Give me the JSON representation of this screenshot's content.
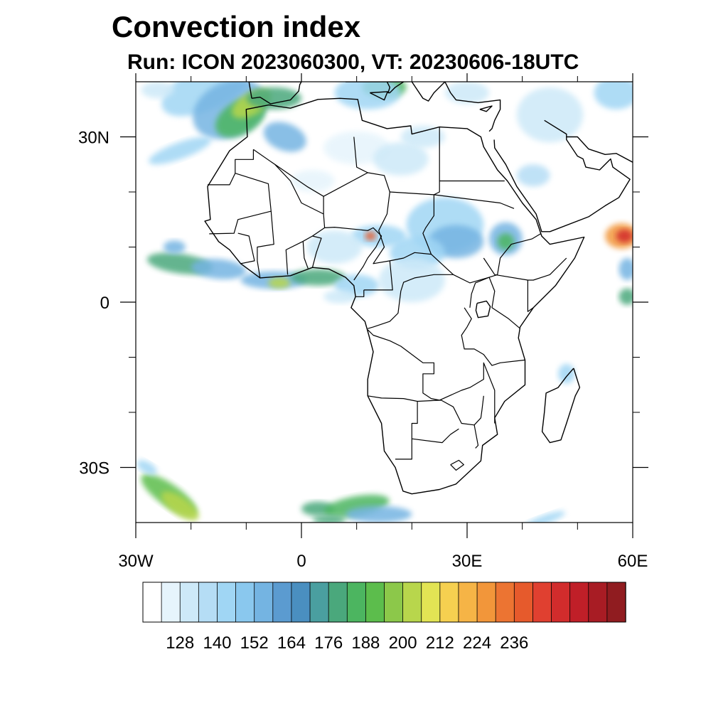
{
  "title": "Convection index",
  "subtitle": "Run: ICON 2023060300,  VT: 20230606-18UTC",
  "map": {
    "projection": "equirectangular",
    "lon_range": [
      -30,
      60
    ],
    "lat_range": [
      -40,
      40
    ],
    "lon_ticks": [
      {
        "value": -30,
        "label": "30W"
      },
      {
        "value": 0,
        "label": "0"
      },
      {
        "value": 30,
        "label": "30E"
      },
      {
        "value": 60,
        "label": "60E"
      }
    ],
    "lat_ticks": [
      {
        "value": 30,
        "label": "30N"
      },
      {
        "value": 0,
        "label": "0"
      },
      {
        "value": -30,
        "label": "30S"
      }
    ],
    "region": "Africa and surrounding oceans"
  },
  "colorbar": {
    "colors": [
      "#ffffff",
      "#e6f4fc",
      "#cde9f8",
      "#b5ddf5",
      "#a0d6f4",
      "#8ac8ee",
      "#74b4e2",
      "#5b9bd0",
      "#4a8fc0",
      "#4a9fa0",
      "#4aa87c",
      "#4cb560",
      "#5cbd4c",
      "#8cc84a",
      "#b8d64c",
      "#e2e454",
      "#f6d050",
      "#f6b446",
      "#f2963a",
      "#ec7432",
      "#e65a2c",
      "#e04030",
      "#d22c2c",
      "#c01f28",
      "#a81c24",
      "#901c20"
    ],
    "labels": [
      "128",
      "140",
      "152",
      "164",
      "176",
      "188",
      "200",
      "212",
      "224",
      "236"
    ]
  },
  "chart_data": {
    "type": "heatmap",
    "title": "Convection index",
    "subtitle": "Run: ICON 2023060300,  VT: 20230606-18UTC",
    "x_axis_ticks": [
      "30W",
      "0",
      "30E",
      "60E"
    ],
    "y_axis_ticks": [
      "30N",
      "0",
      "30S"
    ],
    "xlim": [
      -30,
      60
    ],
    "ylim": [
      -40,
      40
    ],
    "colorbar_ticks": [
      128,
      140,
      152,
      164,
      176,
      188,
      200,
      212,
      224,
      236
    ],
    "grid": false
  }
}
